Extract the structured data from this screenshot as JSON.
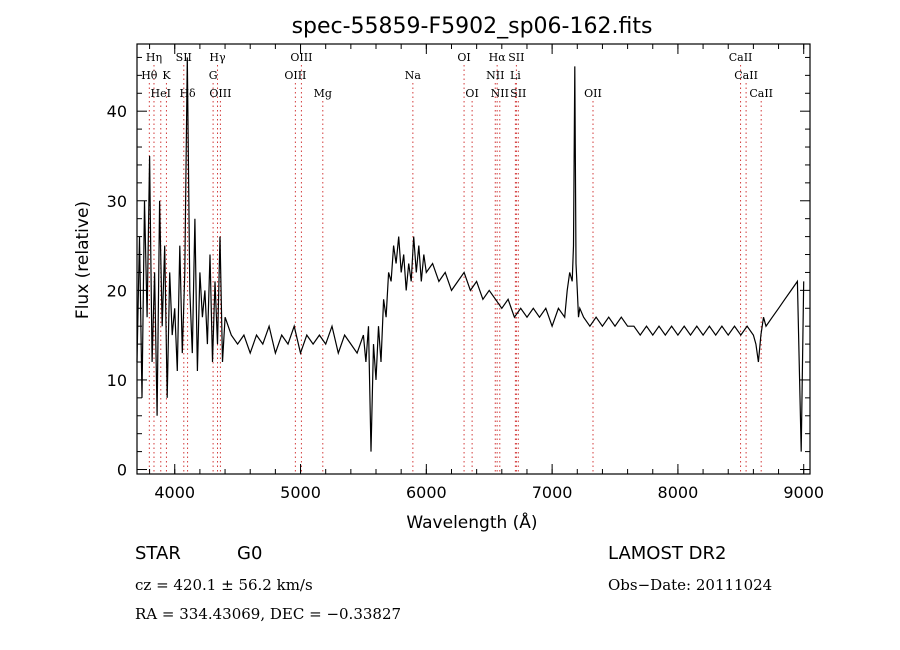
{
  "chart_data": {
    "type": "line",
    "title": "spec-55859-F5902_sp06-162.fits",
    "xlabel": "Wavelength (Å)",
    "ylabel": "Flux (relative)",
    "xlim": [
      3700,
      9050
    ],
    "ylim": [
      -0.5,
      47.5
    ],
    "x_ticks": [
      4000,
      5000,
      6000,
      7000,
      8000,
      9000
    ],
    "y_ticks": [
      0,
      10,
      20,
      30,
      40
    ],
    "grid": false,
    "series": [
      {
        "x": [
          3700,
          3720,
          3740,
          3760,
          3780,
          3800,
          3820,
          3840,
          3860,
          3880,
          3900,
          3920,
          3940,
          3960,
          3980,
          4000,
          4020,
          4040,
          4060,
          4080,
          4100,
          4120,
          4140,
          4160,
          4180,
          4200,
          4220,
          4240,
          4260,
          4280,
          4300,
          4320,
          4340,
          4360,
          4380,
          4400,
          4450,
          4500,
          4550,
          4600,
          4650,
          4700,
          4750,
          4800,
          4850,
          4900,
          4950,
          5000,
          5050,
          5100,
          5150,
          5200,
          5250,
          5300,
          5350,
          5400,
          5450,
          5500,
          5520,
          5540,
          5560,
          5580,
          5600,
          5620,
          5640,
          5660,
          5680,
          5700,
          5720,
          5740,
          5760,
          5780,
          5800,
          5820,
          5840,
          5860,
          5880,
          5900,
          5920,
          5940,
          5960,
          5980,
          6000,
          6050,
          6100,
          6150,
          6200,
          6250,
          6300,
          6350,
          6400,
          6450,
          6500,
          6550,
          6600,
          6650,
          6700,
          6750,
          6800,
          6850,
          6900,
          6950,
          7000,
          7050,
          7100,
          7120,
          7140,
          7160,
          7170,
          7180,
          7190,
          7200,
          7210,
          7220,
          7250,
          7300,
          7350,
          7400,
          7450,
          7500,
          7550,
          7600,
          7650,
          7700,
          7750,
          7800,
          7850,
          7900,
          7950,
          8000,
          8050,
          8100,
          8150,
          8200,
          8250,
          8300,
          8350,
          8400,
          8450,
          8500,
          8550,
          8600,
          8620,
          8640,
          8660,
          8680,
          8700,
          8750,
          8800,
          8850,
          8900,
          8950,
          8980,
          9000
        ],
        "y": [
          12,
          26,
          8,
          30,
          17,
          35,
          12,
          22,
          6,
          30,
          16,
          25,
          8,
          22,
          15,
          18,
          11,
          25,
          13,
          22,
          46,
          20,
          13,
          28,
          11,
          22,
          17,
          20,
          14,
          24,
          12,
          21,
          14,
          26,
          12,
          17,
          15,
          14,
          15,
          13,
          15,
          14,
          16,
          13,
          15,
          14,
          16,
          13,
          15,
          14,
          15,
          14,
          16,
          13,
          15,
          14,
          13,
          15,
          12,
          16,
          2,
          14,
          10,
          16,
          12,
          19,
          17,
          22,
          21,
          25,
          23,
          26,
          22,
          24,
          20,
          23,
          21,
          26,
          22,
          25,
          21,
          24,
          22,
          23,
          21,
          22,
          20,
          21,
          22,
          20,
          21,
          19,
          20,
          19,
          18,
          19,
          17,
          18,
          17,
          18,
          17,
          18,
          16,
          18,
          17,
          20,
          22,
          21,
          25,
          45,
          23,
          20,
          17,
          18,
          17,
          16,
          17,
          16,
          17,
          16,
          17,
          16,
          16,
          15,
          16,
          15,
          16,
          15,
          16,
          15,
          16,
          15,
          16,
          15,
          16,
          15,
          16,
          15,
          16,
          15,
          16,
          15,
          14,
          12,
          15,
          17,
          16,
          17,
          18,
          19,
          20,
          21,
          2,
          21
        ]
      }
    ],
    "lines": [
      {
        "label": "Hη",
        "x": 3835,
        "row": 0
      },
      {
        "label": "Hθ",
        "x": 3798,
        "row": 1
      },
      {
        "label": "K",
        "x": 3934,
        "row": 1
      },
      {
        "label": "HeI",
        "x": 3889,
        "row": 2
      },
      {
        "label": "SII",
        "x": 4072,
        "row": 0
      },
      {
        "label": "Hδ",
        "x": 4102,
        "row": 2
      },
      {
        "label": "Hγ",
        "x": 4340,
        "row": 0
      },
      {
        "label": "G",
        "x": 4305,
        "row": 1
      },
      {
        "label": "OIII",
        "x": 4363,
        "row": 2
      },
      {
        "label": "OIII",
        "x": 5007,
        "row": 0
      },
      {
        "label": "OIII",
        "x": 4959,
        "row": 1
      },
      {
        "label": "Mg",
        "x": 5177,
        "row": 2
      },
      {
        "label": "Na",
        "x": 5893,
        "row": 1
      },
      {
        "label": "OI",
        "x": 6300,
        "row": 0
      },
      {
        "label": "OI",
        "x": 6364,
        "row": 2
      },
      {
        "label": "Hα",
        "x": 6563,
        "row": 0
      },
      {
        "label": "SII",
        "x": 6716,
        "row": 0
      },
      {
        "label": "NII",
        "x": 6548,
        "row": 1
      },
      {
        "label": "Li",
        "x": 6708,
        "row": 1
      },
      {
        "label": "NII",
        "x": 6584,
        "row": 2
      },
      {
        "label": "SII",
        "x": 6731,
        "row": 2
      },
      {
        "label": "OII",
        "x": 7325,
        "row": 2
      },
      {
        "label": "CaII",
        "x": 8498,
        "row": 0
      },
      {
        "label": "CaII",
        "x": 8542,
        "row": 1
      },
      {
        "label": "CaII",
        "x": 8662,
        "row": 2
      }
    ]
  },
  "info": {
    "class": "STAR",
    "subclass": "G0",
    "survey": "LAMOST DR2",
    "cz": "cz = 420.1 ± 56.2 km/s",
    "obs_date": "Obs−Date: 20111024",
    "coords": "RA = 334.43069, DEC =  −0.33827"
  }
}
